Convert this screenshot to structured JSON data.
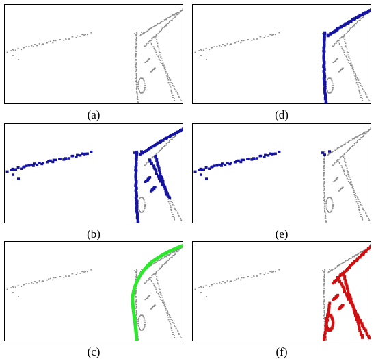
{
  "panels": {
    "a": {
      "label": "(a)"
    },
    "b": {
      "label": "(b)"
    },
    "c": {
      "label": "(c)"
    },
    "d": {
      "label": "(d)"
    },
    "e": {
      "label": "(e)"
    },
    "f": {
      "label": "(f)"
    }
  },
  "colors": {
    "base_points": "#8c8c8c",
    "highlight_blue": "#1414a0",
    "highlight_green": "#2ee82e",
    "highlight_red": "#d01010"
  }
}
